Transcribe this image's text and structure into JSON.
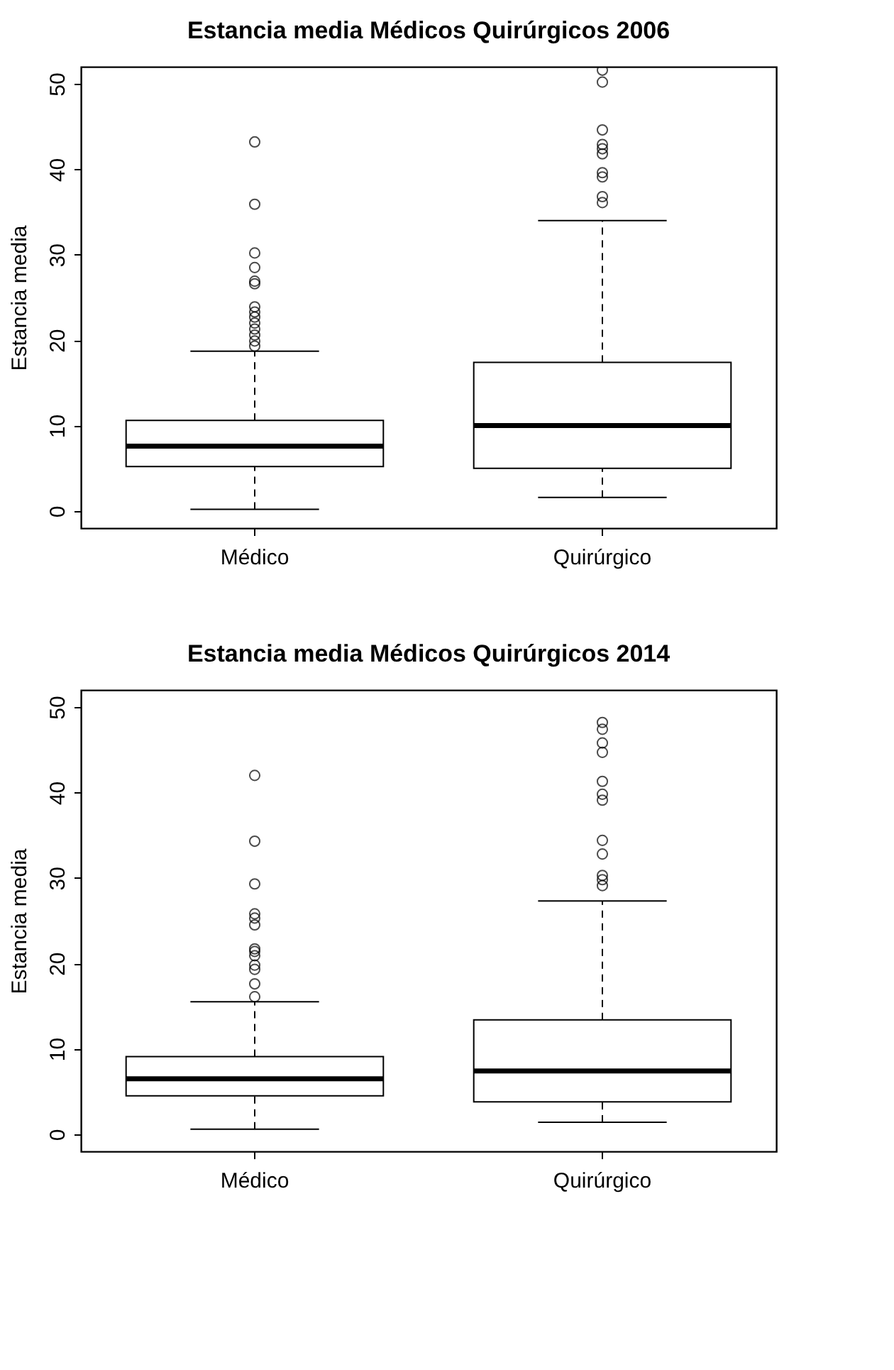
{
  "chart_data": [
    {
      "type": "box",
      "title": "Estancia media Médicos Quirúrgicos 2006",
      "ylabel": "Estancia media",
      "categories": [
        "Médico",
        "Quirúrgico"
      ],
      "ylim": [
        -2,
        52
      ],
      "yticks": [
        0,
        10,
        20,
        30,
        40,
        50
      ],
      "boxes": [
        {
          "low": 0.2,
          "q1": 5.2,
          "median": 7.6,
          "q3": 10.6,
          "high": 18.7,
          "outliers": [
            43.2,
            35.9,
            30.2,
            28.5,
            26.9,
            26.6,
            23.9,
            23.3,
            22.7,
            22.0,
            21.3,
            20.6,
            19.9,
            19.3
          ]
        },
        {
          "low": 1.6,
          "q1": 5.0,
          "median": 10.0,
          "q3": 17.4,
          "high": 34.0,
          "outliers": [
            51.6,
            50.2,
            44.6,
            42.9,
            42.4,
            41.8,
            39.6,
            39.1,
            36.8,
            36.1
          ]
        }
      ]
    },
    {
      "type": "box",
      "title": "Estancia media Médicos Quirúrgicos 2014",
      "ylabel": "Estancia media",
      "categories": [
        "Médico",
        "Quirúrgico"
      ],
      "ylim": [
        -2,
        52
      ],
      "yticks": [
        0,
        10,
        20,
        30,
        40,
        50
      ],
      "boxes": [
        {
          "low": 0.6,
          "q1": 4.5,
          "median": 6.5,
          "q3": 9.1,
          "high": 15.5,
          "outliers": [
            42.0,
            34.3,
            29.3,
            25.8,
            25.3,
            24.5,
            21.7,
            21.4,
            20.9,
            19.8,
            19.3,
            17.6,
            16.1
          ]
        },
        {
          "low": 1.4,
          "q1": 3.8,
          "median": 7.4,
          "q3": 13.4,
          "high": 27.3,
          "outliers": [
            48.2,
            47.4,
            45.8,
            44.7,
            41.3,
            39.8,
            39.1,
            34.4,
            32.8,
            30.3,
            29.8,
            29.1
          ]
        }
      ]
    }
  ]
}
